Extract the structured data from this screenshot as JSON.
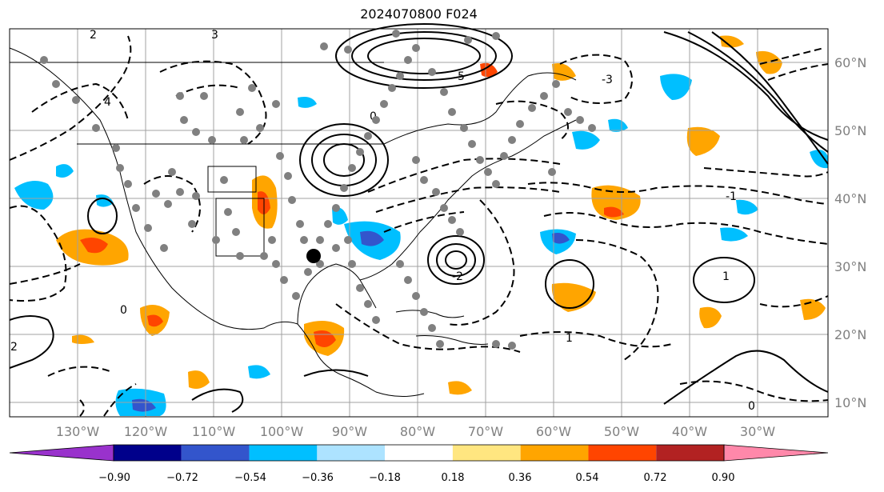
{
  "title": "2024070800 F024",
  "map": {
    "longitude_labels": [
      "130°W",
      "120°W",
      "110°W",
      "100°W",
      "90°W",
      "80°W",
      "70°W",
      "60°W",
      "50°W",
      "40°W",
      "30°W"
    ],
    "latitude_labels": [
      "60°N",
      "50°N",
      "40°N",
      "30°N",
      "20°N",
      "10°N"
    ],
    "grid": true,
    "projection": "plate carree",
    "marker": "black dot near 28°N, 94°W"
  },
  "colorbar": {
    "ticks": [
      "−0.90",
      "−0.72",
      "−0.54",
      "−0.36",
      "−0.18",
      "0.18",
      "0.36",
      "0.54",
      "0.72",
      "0.90"
    ],
    "colors": [
      "#9932CC",
      "#00008B",
      "#3355CC",
      "#00BFFF",
      "#ADE3FF",
      "#FFFFFF",
      "#FFE680",
      "#FFA500",
      "#FF4500",
      "#B22222",
      "#FF88AA"
    ]
  },
  "contour_labels": [
    "2",
    "3",
    "4",
    "0",
    "1",
    "-1",
    "-2",
    "5",
    "-3",
    "0",
    "1",
    "2",
    "0"
  ],
  "colors": {
    "positive": "#FFA500",
    "strong_positive": "#FF4500",
    "negative": "#00BFFF",
    "station_dots": "#808080"
  }
}
